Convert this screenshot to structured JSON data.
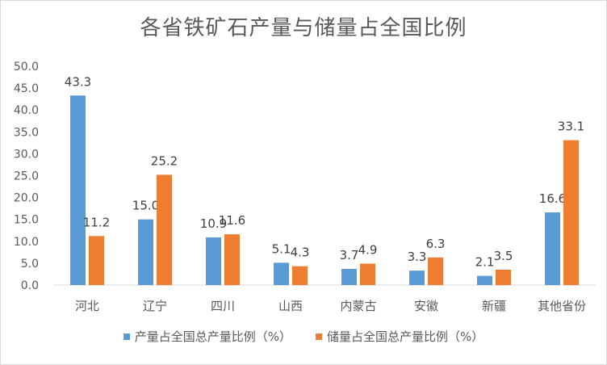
{
  "chart_data": {
    "type": "bar",
    "title": "各省铁矿石产量与储量占全国比例",
    "categories": [
      "河北",
      "辽宁",
      "四川",
      "山西",
      "内蒙古",
      "安徽",
      "新疆",
      "其他省份"
    ],
    "series": [
      {
        "name": "产量占全国总产量比例（%）",
        "color": "#5b9bd5",
        "values": [
          43.3,
          15.0,
          10.9,
          5.1,
          3.7,
          3.3,
          2.1,
          16.6
        ]
      },
      {
        "name": "储量占全国总产量比例（%）",
        "color": "#ed7d31",
        "values": [
          11.2,
          25.2,
          11.6,
          4.3,
          4.9,
          6.3,
          3.5,
          33.1
        ]
      }
    ],
    "yticks": [
      "0.0",
      "5.0",
      "10.0",
      "15.0",
      "20.0",
      "25.0",
      "30.0",
      "35.0",
      "40.0",
      "45.0",
      "50.0"
    ],
    "ylim": [
      0,
      50
    ],
    "grid": false,
    "legend_position": "bottom"
  }
}
